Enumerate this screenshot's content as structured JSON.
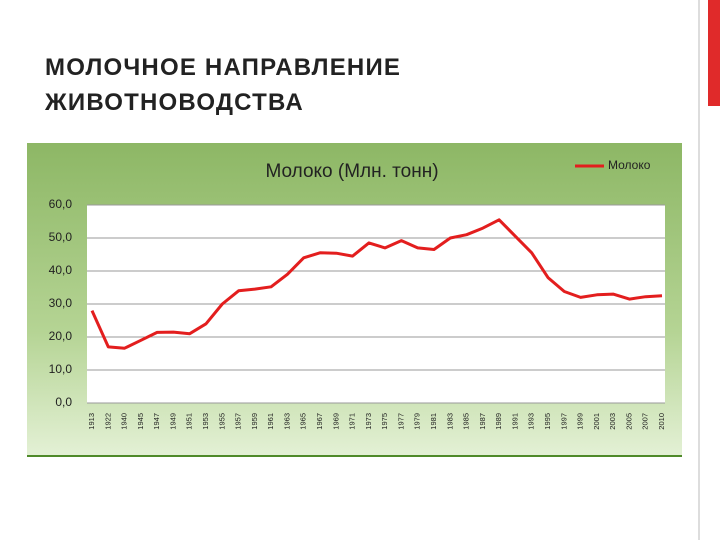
{
  "slide_title": "МОЛОЧНОЕ НАПРАВЛЕНИЕ ЖИВОТНОВОДСТВА",
  "chart_data": {
    "type": "line",
    "title": "Молоко (Млн. тонн)",
    "categories": [
      "1913",
      "1922",
      "1940",
      "1945",
      "1947",
      "1949",
      "1951",
      "1953",
      "1955",
      "1957",
      "1959",
      "1961",
      "1963",
      "1965",
      "1967",
      "1969",
      "1971",
      "1973",
      "1975",
      "1977",
      "1979",
      "1981",
      "1983",
      "1985",
      "1987",
      "1989",
      "1991",
      "1993",
      "1995",
      "1997",
      "1999",
      "2001",
      "2003",
      "2005",
      "2007",
      "2010"
    ],
    "series": [
      {
        "name": "Молоко",
        "color": "#e31e1e",
        "values": [
          28,
          17,
          16.6,
          19,
          21.4,
          21.5,
          21,
          24,
          30,
          34,
          34.5,
          35.2,
          39,
          44,
          45.5,
          45.4,
          44.5,
          48.5,
          47,
          49.2,
          47,
          46.5,
          50,
          51,
          53,
          55.5,
          50.5,
          45.5,
          38,
          33.8,
          32,
          32.8,
          33,
          31.5,
          32.2,
          32.5
        ]
      }
    ],
    "ylim": [
      0,
      60
    ],
    "yticks": [
      {
        "value": 0,
        "label": "0,0"
      },
      {
        "value": 10,
        "label": "10,0"
      },
      {
        "value": 20,
        "label": "20,0"
      },
      {
        "value": 30,
        "label": "30,0"
      },
      {
        "value": 40,
        "label": "40,0"
      },
      {
        "value": 50,
        "label": "50,0"
      },
      {
        "value": 60,
        "label": "60,0"
      }
    ],
    "grid": true,
    "legend": "top-right"
  }
}
